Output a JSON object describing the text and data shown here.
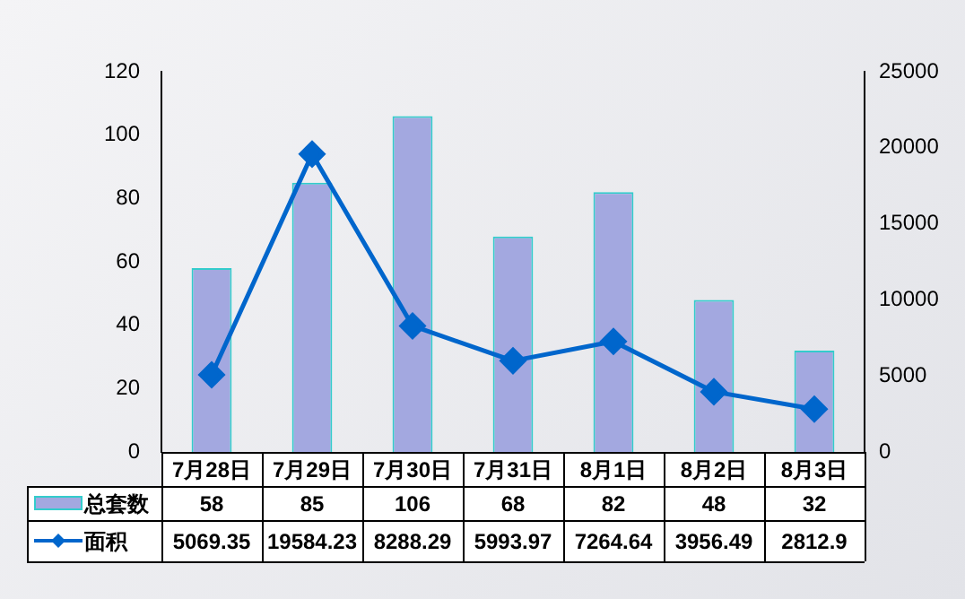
{
  "chart_data": {
    "type": "bar",
    "categories": [
      "7月28日",
      "7月29日",
      "7月30日",
      "7月31日",
      "8月1日",
      "8月2日",
      "8月3日"
    ],
    "series": [
      {
        "name": "总套数",
        "color": "#a3a8e0",
        "values": [
          58,
          85,
          106,
          68,
          82,
          48,
          32
        ]
      },
      {
        "name": "面积",
        "type": "line",
        "axis": "y2",
        "color": "#0066cc",
        "values": [
          5069.35,
          19584.23,
          8288.29,
          5993.97,
          7264.64,
          3956.49,
          2812.9
        ]
      }
    ],
    "ylim": [
      0,
      120
    ],
    "yticks": [
      0,
      20,
      40,
      60,
      80,
      100,
      120
    ],
    "y2lim": [
      0,
      25000
    ],
    "y2ticks": [
      0,
      5000,
      10000,
      15000,
      20000,
      25000
    ],
    "grid": false,
    "legend": "bottom",
    "marker": "diamond",
    "line_style": "solid",
    "data_labels": true
  }
}
